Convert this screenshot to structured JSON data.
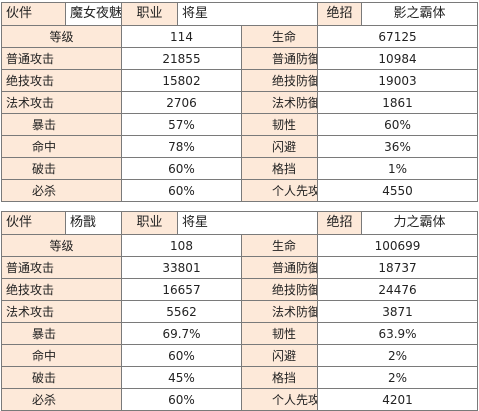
{
  "colors": {
    "header_bg": "#fde9d9",
    "row_bg": "#fde9d9",
    "value_bg": "#ffffff",
    "border": "#7a7a7a"
  },
  "tables": [
    {
      "header": {
        "partner_label": "伙伴",
        "partner_name": "魔女夜魅",
        "job_label": "职业",
        "job_value": "将星",
        "skill_label": "绝招",
        "skill_value": "影之霸体"
      },
      "rows": [
        {
          "label1": "等级",
          "value1": "114",
          "label2": "生命",
          "value2": "67125"
        },
        {
          "label1": "普通攻击",
          "value1": "21855",
          "label2": "普通防御",
          "value2": "10984"
        },
        {
          "label1": "绝技攻击",
          "value1": "15802",
          "label2": "绝技防御",
          "value2": "19003"
        },
        {
          "label1": "法术攻击",
          "value1": "2706",
          "label2": "法术防御",
          "value2": "1861"
        },
        {
          "label1": "暴击",
          "value1": "57%",
          "label2": "韧性",
          "value2": "60%"
        },
        {
          "label1": "命中",
          "value1": "78%",
          "label2": "闪避",
          "value2": "36%"
        },
        {
          "label1": "破击",
          "value1": "60%",
          "label2": "格挡",
          "value2": "1%"
        },
        {
          "label1": "必杀",
          "value1": "60%",
          "label2": "个人先攻",
          "value2": "4550"
        }
      ]
    },
    {
      "header": {
        "partner_label": "伙伴",
        "partner_name": "杨戬",
        "job_label": "职业",
        "job_value": "将星",
        "skill_label": "绝招",
        "skill_value": "力之霸体"
      },
      "rows": [
        {
          "label1": "等级",
          "value1": "108",
          "label2": "生命",
          "value2": "100699"
        },
        {
          "label1": "普通攻击",
          "value1": "33801",
          "label2": "普通防御",
          "value2": "18737"
        },
        {
          "label1": "绝技攻击",
          "value1": "16657",
          "label2": "绝技防御",
          "value2": "24476"
        },
        {
          "label1": "法术攻击",
          "value1": "5562",
          "label2": "法术防御",
          "value2": "3871"
        },
        {
          "label1": "暴击",
          "value1": "69.7%",
          "label2": "韧性",
          "value2": "63.9%"
        },
        {
          "label1": "命中",
          "value1": "60%",
          "label2": "闪避",
          "value2": "2%"
        },
        {
          "label1": "破击",
          "value1": "45%",
          "label2": "格挡",
          "value2": "2%"
        },
        {
          "label1": "必杀",
          "value1": "60%",
          "label2": "个人先攻",
          "value2": "4201"
        }
      ]
    }
  ]
}
